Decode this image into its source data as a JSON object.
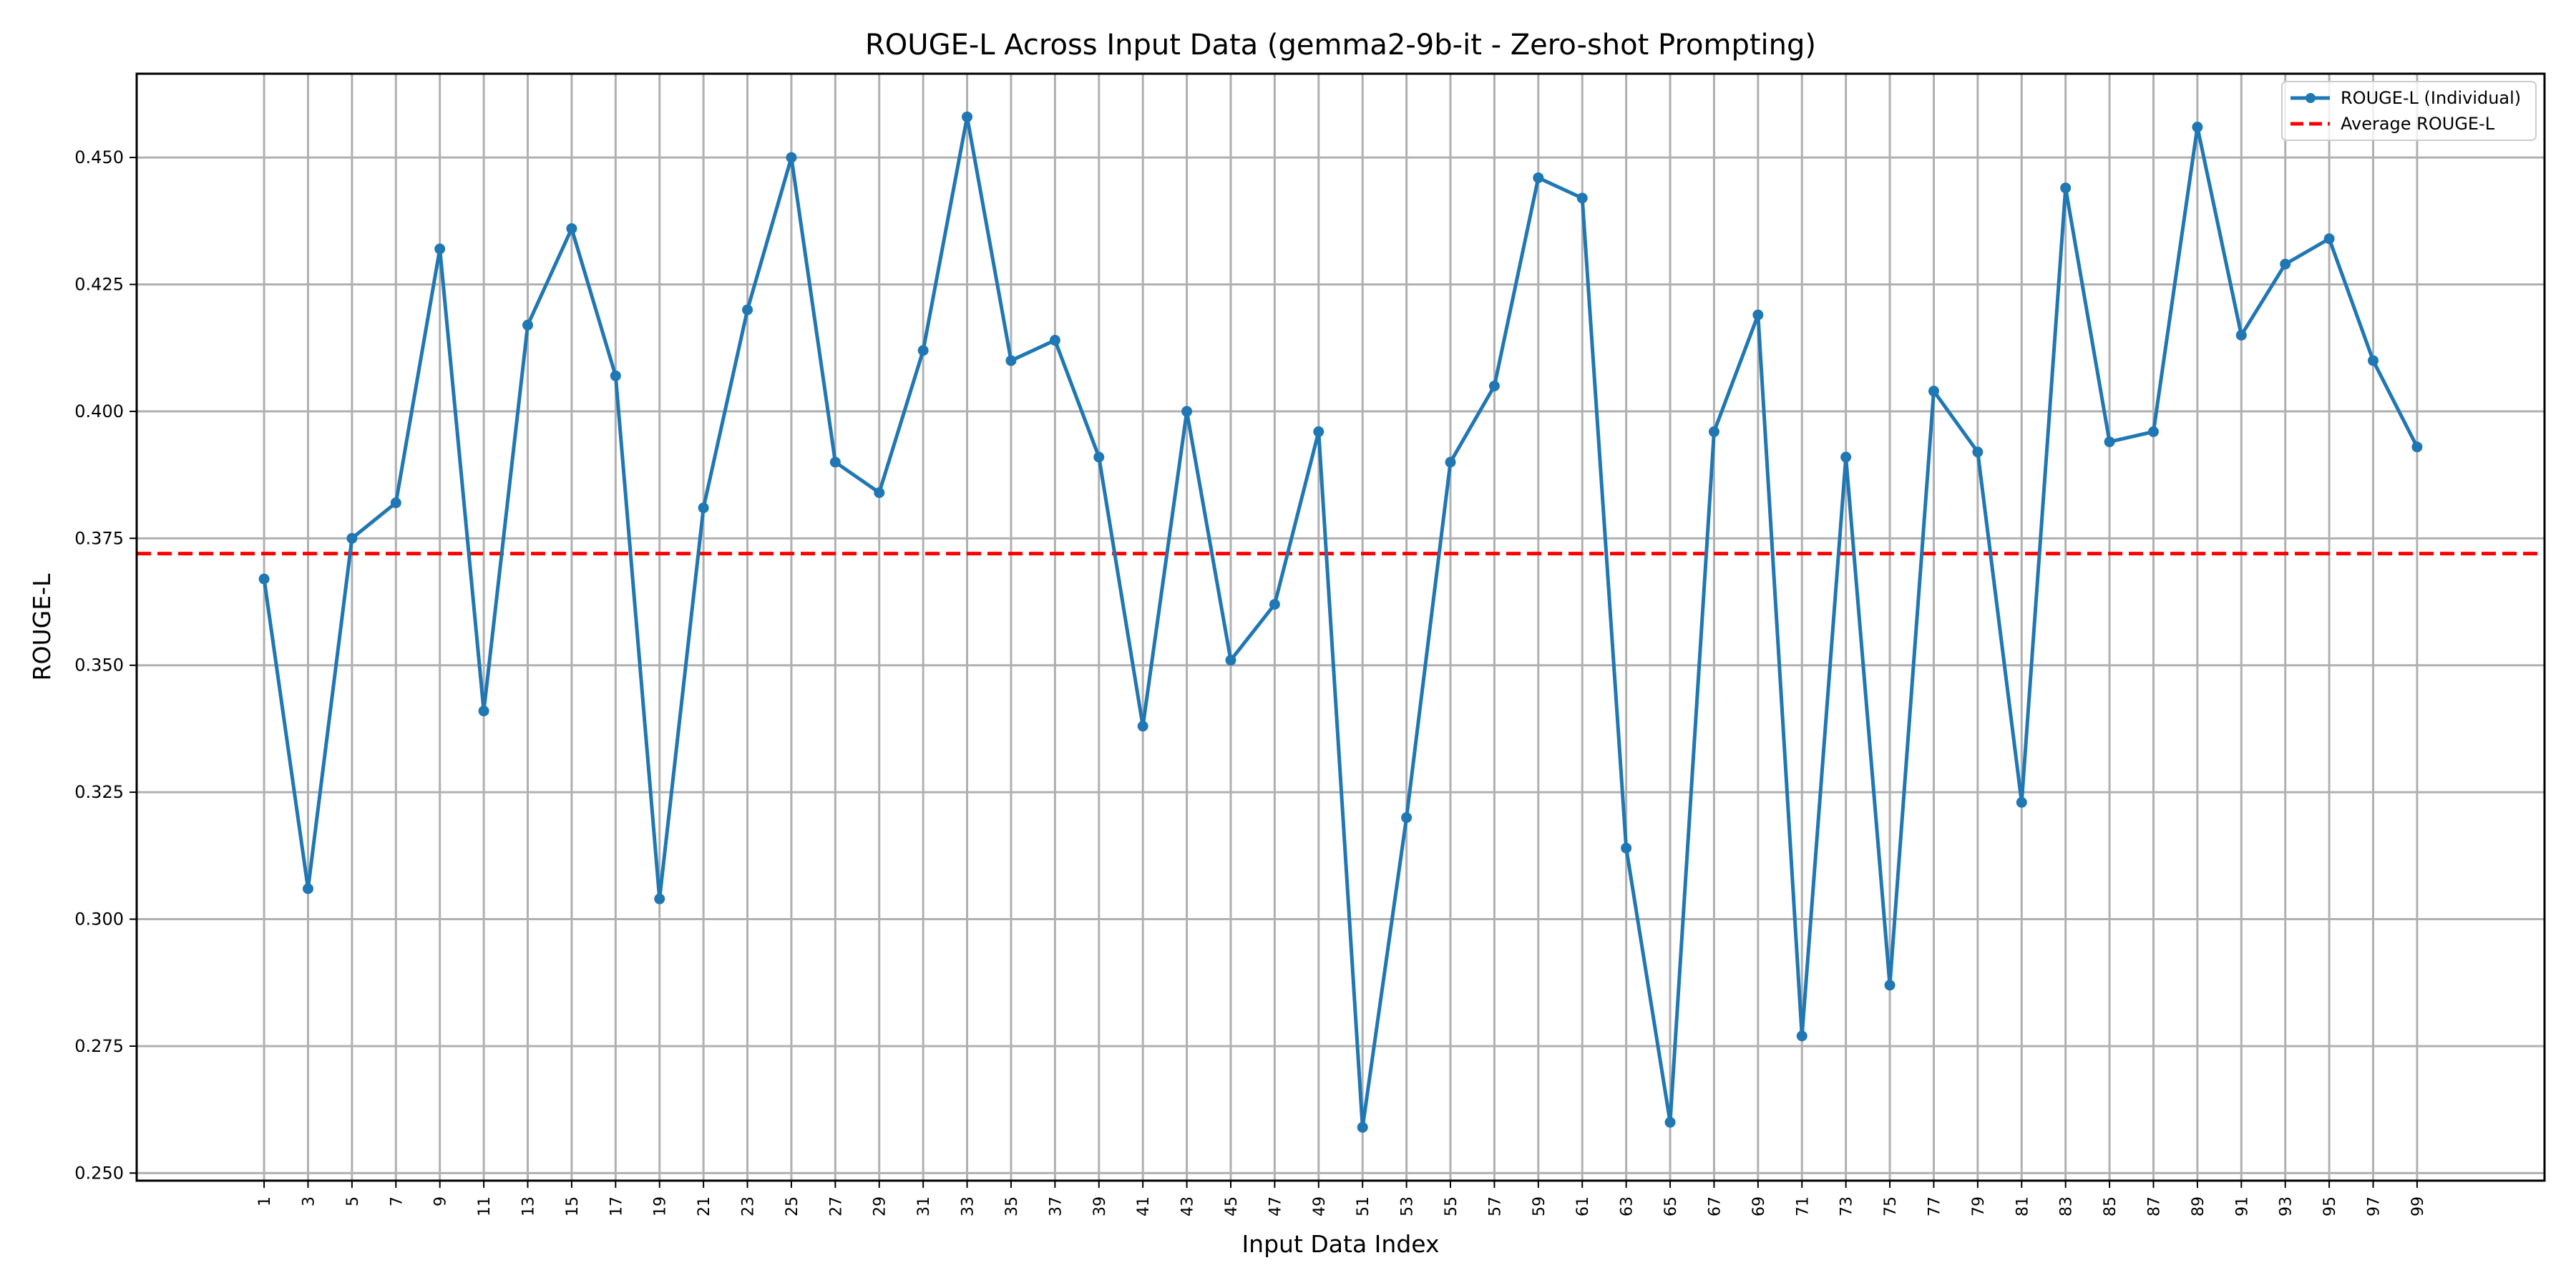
{
  "chart_data": {
    "type": "line",
    "title": "ROUGE-L Across Input Data (gemma2-9b-it - Zero-shot Prompting)",
    "xlabel": "Input Data Index",
    "ylabel": "ROUGE-L",
    "x": [
      1,
      3,
      5,
      7,
      9,
      11,
      13,
      15,
      17,
      19,
      21,
      23,
      25,
      27,
      29,
      31,
      33,
      35,
      37,
      39,
      41,
      43,
      45,
      47,
      49,
      51,
      53,
      55,
      57,
      59,
      61,
      63,
      65,
      67,
      69,
      71,
      73,
      75,
      77,
      79,
      81,
      83,
      85,
      87,
      89,
      91,
      93,
      95,
      97,
      99
    ],
    "series": [
      {
        "name": "ROUGE-L (Individual)",
        "color": "#1f77b4",
        "values": [
          0.367,
          0.306,
          0.375,
          0.382,
          0.432,
          0.341,
          0.417,
          0.436,
          0.407,
          0.304,
          0.381,
          0.42,
          0.45,
          0.39,
          0.384,
          0.412,
          0.458,
          0.41,
          0.414,
          0.391,
          0.338,
          0.4,
          0.351,
          0.362,
          0.396,
          0.259,
          0.32,
          0.39,
          0.405,
          0.446,
          0.442,
          0.314,
          0.26,
          0.396,
          0.419,
          0.277,
          0.391,
          0.287,
          0.404,
          0.392,
          0.323,
          0.444,
          0.394,
          0.396,
          0.456,
          0.415,
          0.429,
          0.434,
          0.41,
          0.393
        ]
      }
    ],
    "average": {
      "name": "Average ROUGE-L",
      "value": 0.372,
      "color": "#ff0000",
      "style": "dashed"
    },
    "xlim": [
      -4.8,
      104.8
    ],
    "ylim": [
      0.2485,
      0.4665
    ],
    "yticks": [
      0.25,
      0.275,
      0.3,
      0.325,
      0.35,
      0.375,
      0.4,
      0.425,
      0.45
    ],
    "ytick_labels": [
      "0.250",
      "0.275",
      "0.300",
      "0.325",
      "0.350",
      "0.375",
      "0.400",
      "0.425",
      "0.450"
    ],
    "xtick_labels": [
      "1",
      "3",
      "5",
      "7",
      "9",
      "11",
      "13",
      "15",
      "17",
      "19",
      "21",
      "23",
      "25",
      "27",
      "29",
      "31",
      "33",
      "35",
      "37",
      "39",
      "41",
      "43",
      "45",
      "47",
      "49",
      "51",
      "53",
      "55",
      "57",
      "59",
      "61",
      "63",
      "65",
      "67",
      "69",
      "71",
      "73",
      "75",
      "77",
      "79",
      "81",
      "83",
      "85",
      "87",
      "89",
      "91",
      "93",
      "95",
      "97",
      "99"
    ],
    "grid": true,
    "legend_position": "top-right"
  }
}
